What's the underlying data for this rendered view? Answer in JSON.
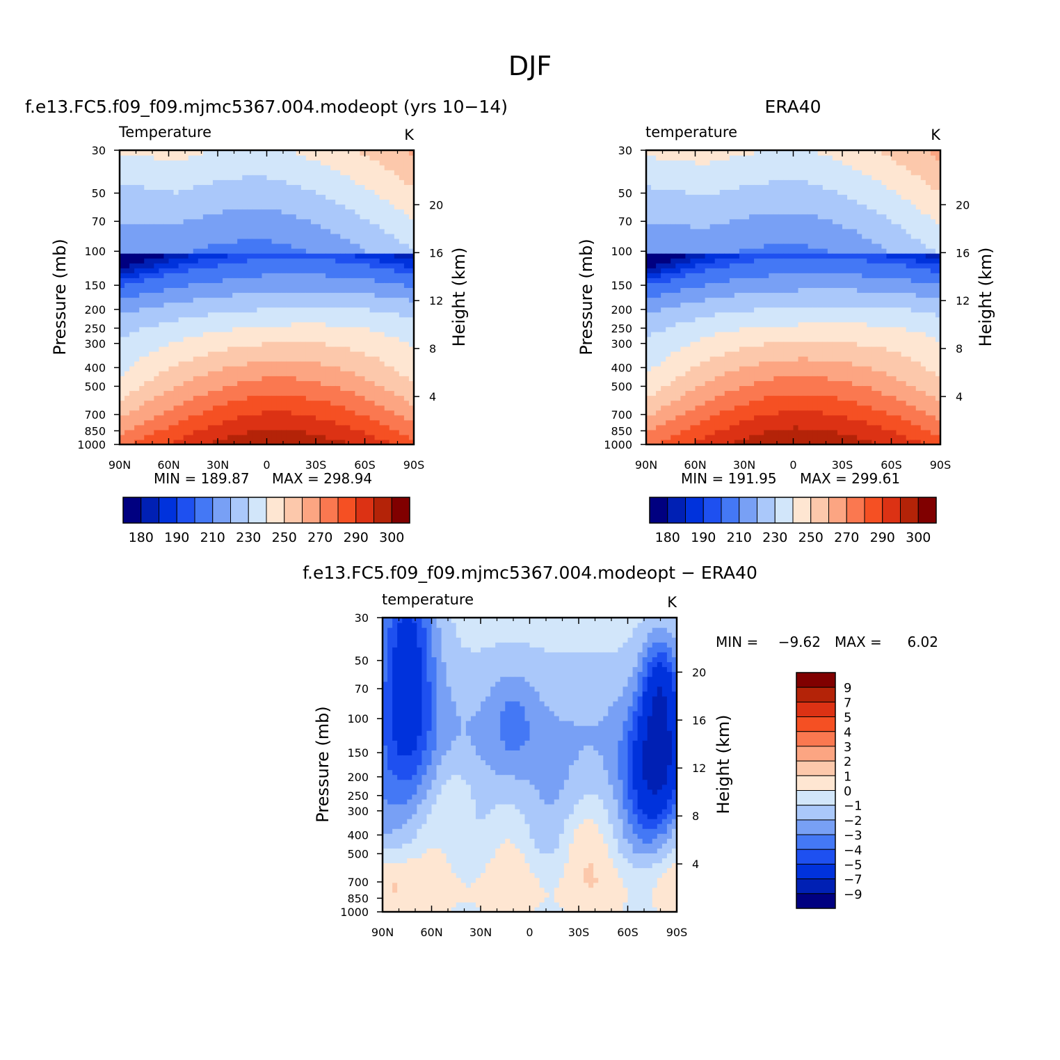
{
  "page": {
    "title": "DJF"
  },
  "levels": {
    "abs": [
      175,
      180,
      185,
      190,
      200,
      210,
      220,
      230,
      240,
      250,
      260,
      270,
      280,
      290,
      300
    ],
    "diff": [
      -9,
      -7,
      -5,
      -4,
      -3,
      -2,
      -1,
      0,
      1,
      2,
      3,
      4,
      5,
      7,
      9
    ]
  },
  "colors": {
    "abs": [
      "#000080",
      "#0020b4",
      "#0032dc",
      "#1e50f0",
      "#4478f5",
      "#78a0f5",
      "#aac8fa",
      "#d2e6fa",
      "#fee6d2",
      "#fcc8ab",
      "#fca582",
      "#fa7850",
      "#f55023",
      "#dc3214",
      "#b42308",
      "#800000"
    ],
    "diff": [
      "#000080",
      "#0020b4",
      "#0032dc",
      "#1e50f0",
      "#4478f5",
      "#78a0f5",
      "#aac8fa",
      "#d2e6fa",
      "#fee6d2",
      "#fcc8ab",
      "#fca582",
      "#fa7850",
      "#f55023",
      "#dc3214",
      "#b42308",
      "#800000"
    ]
  },
  "chart_data": [
    {
      "id": "model",
      "type": "contour",
      "title": "f.e13.FC5.f09_f09.mjmc5367.004.modeopt (yrs 10-14)",
      "subtitle": "Temperature",
      "units": "K",
      "ylabel": "Pressure (mb)",
      "ylabel_right": "Height (km)",
      "x_ticks": [
        "90N",
        "60N",
        "30N",
        "0",
        "30S",
        "60S",
        "90S"
      ],
      "y_ticks": [
        30,
        50,
        70,
        100,
        150,
        200,
        250,
        300,
        400,
        500,
        700,
        850,
        1000
      ],
      "height_ticks": [
        4,
        8,
        12,
        16,
        20
      ],
      "min_label": "MIN = 189.87",
      "max_label": "MAX = 298.94",
      "colorbar_labels": [
        "180",
        "190",
        "210",
        "230",
        "250",
        "270",
        "290",
        "300"
      ],
      "ylim": [
        1000,
        30
      ],
      "xlim": [
        90,
        -90
      ]
    },
    {
      "id": "obs",
      "type": "contour",
      "title": "ERA40",
      "subtitle": "temperature",
      "units": "K",
      "ylabel": "Pressure (mb)",
      "ylabel_right": "Height (km)",
      "x_ticks": [
        "90N",
        "60N",
        "30N",
        "0",
        "30S",
        "60S",
        "90S"
      ],
      "y_ticks": [
        30,
        50,
        70,
        100,
        150,
        200,
        250,
        300,
        400,
        500,
        700,
        850,
        1000
      ],
      "height_ticks": [
        4,
        8,
        12,
        16,
        20
      ],
      "min_label": "MIN = 191.95",
      "max_label": "MAX = 299.61",
      "colorbar_labels": [
        "180",
        "190",
        "210",
        "230",
        "250",
        "270",
        "290",
        "300"
      ],
      "ylim": [
        1000,
        30
      ],
      "xlim": [
        90,
        -90
      ]
    },
    {
      "id": "diff",
      "type": "contour",
      "title": "f.e13.FC5.f09_f09.mjmc5367.004.modeopt - ERA40",
      "subtitle": "temperature",
      "units": "K",
      "ylabel": "Pressure (mb)",
      "ylabel_right": "Height (km)",
      "x_ticks": [
        "90N",
        "60N",
        "30N",
        "0",
        "30S",
        "60S",
        "90S"
      ],
      "y_ticks": [
        30,
        50,
        70,
        100,
        150,
        200,
        250,
        300,
        400,
        500,
        700,
        850,
        1000
      ],
      "height_ticks": [
        4,
        8,
        12,
        16,
        20
      ],
      "min_label": "MIN =",
      "min_value": "-9.62",
      "max_label": "MAX =",
      "max_value": "6.02",
      "colorbar_labels": [
        "9",
        "7",
        "5",
        "4",
        "3",
        "2",
        "1",
        "0",
        "-1",
        "-2",
        "-3",
        "-4",
        "-5",
        "-7",
        "-9"
      ],
      "ylim": [
        1000,
        30
      ],
      "xlim": [
        90,
        -90
      ]
    }
  ]
}
